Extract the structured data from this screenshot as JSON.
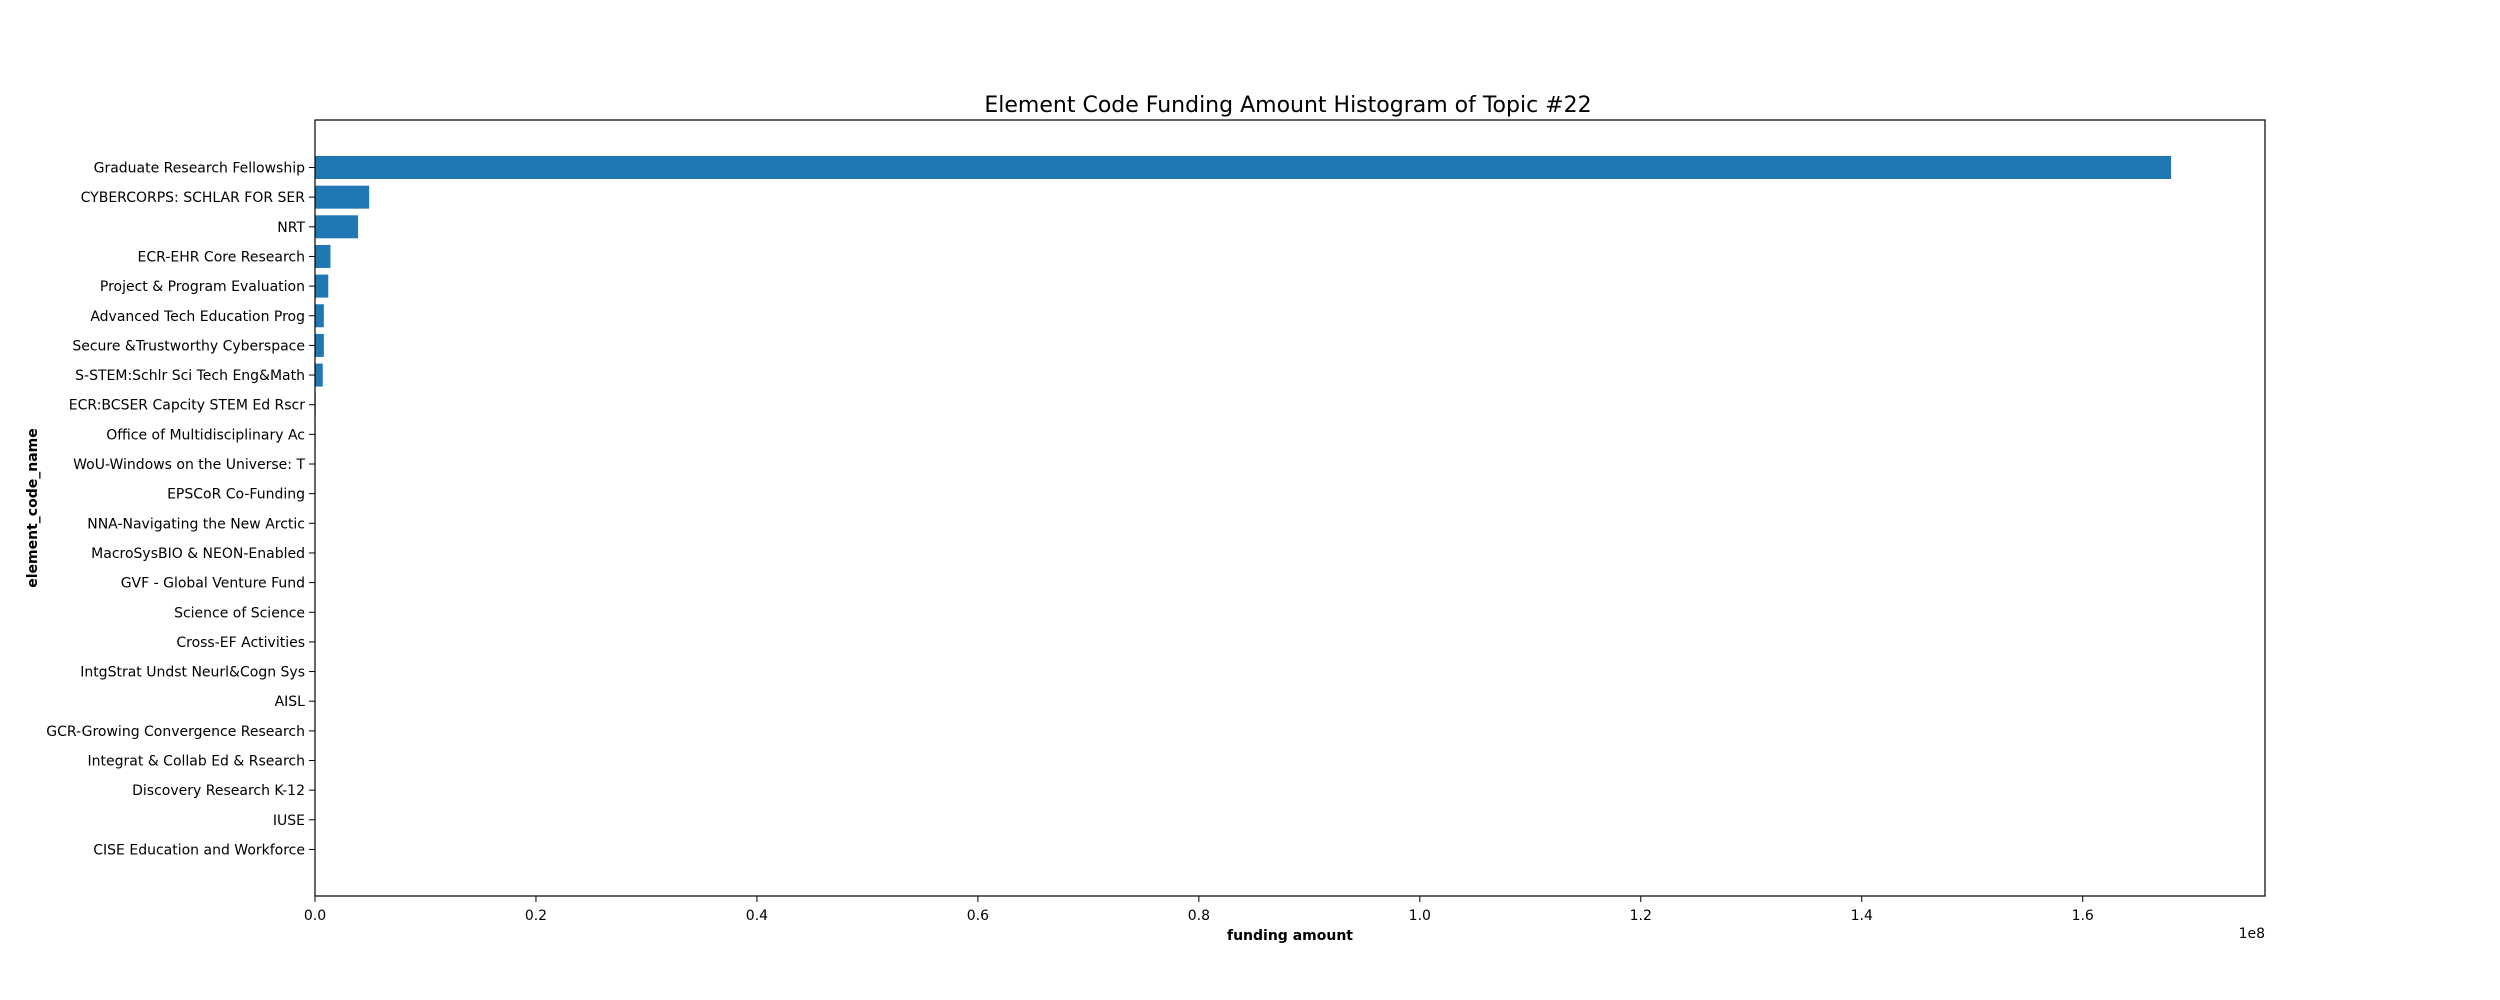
{
  "chart_data": {
    "type": "bar",
    "orientation": "horizontal",
    "title": "Element Code Funding Amount Histogram of Topic #22",
    "xlabel": "funding amount",
    "ylabel": "element_code_name",
    "x_offset_label": "1e8",
    "xlim": [
      0,
      176500000
    ],
    "xticks": [
      0,
      20000000,
      40000000,
      60000000,
      80000000,
      100000000,
      120000000,
      140000000,
      160000000
    ],
    "xtick_labels": [
      "0.0",
      "0.2",
      "0.4",
      "0.6",
      "0.8",
      "1.0",
      "1.2",
      "1.4",
      "1.6"
    ],
    "grid": false,
    "legend": "none",
    "bar_color": "#1f77b4",
    "categories": [
      "Graduate Research Fellowship",
      "CYBERCORPS: SCHLAR FOR SER",
      "NRT",
      "ECR-EHR Core Research",
      "Project & Program Evaluation",
      "Advanced Tech Education Prog",
      "Secure &Trustworthy Cyberspace",
      "S-STEM:Schlr Sci Tech Eng&Math",
      "ECR:BCSER Capcity STEM Ed Rscr",
      "Office of Multidisciplinary Ac",
      "WoU-Windows on the Universe: T",
      "EPSCoR Co-Funding",
      "NNA-Navigating the New Arctic",
      "MacroSysBIO & NEON-Enabled",
      "GVF - Global Venture Fund",
      "Science of Science",
      "Cross-EF Activities",
      "IntgStrat Undst Neurl&Cogn Sys",
      "AISL",
      "GCR-Growing Convergence Research",
      "Integrat & Collab Ed & Rsearch",
      "Discovery Research K-12",
      "IUSE",
      "CISE Education and Workforce"
    ],
    "values": [
      168000000,
      4900000,
      3900000,
      1400000,
      1200000,
      800000,
      800000,
      700000,
      60000,
      50000,
      40000,
      30000,
      30000,
      20000,
      20000,
      15000,
      15000,
      10000,
      10000,
      10000,
      8000,
      8000,
      5000,
      5000
    ]
  }
}
